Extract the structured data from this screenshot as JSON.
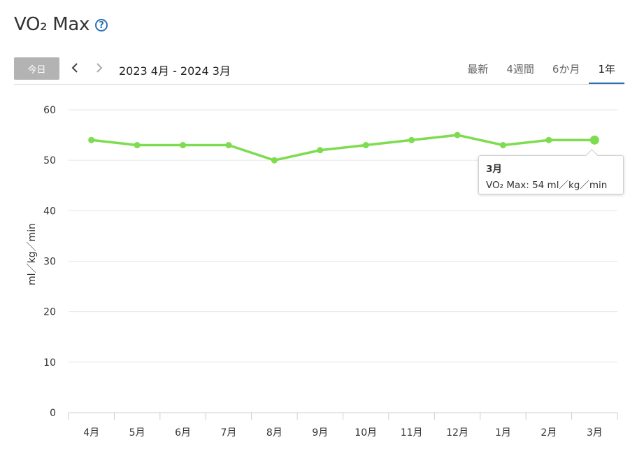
{
  "page": {
    "title": "VO₂ Max",
    "help_icon": "question-circle-icon"
  },
  "toolbar": {
    "today_label": "今日",
    "prev_icon": "chevron-left-icon",
    "next_icon": "chevron-right-icon",
    "date_range": "2023 4月 - 2024 3月",
    "tabs": [
      {
        "label": "最新",
        "active": false
      },
      {
        "label": "4週間",
        "active": false
      },
      {
        "label": "6か月",
        "active": false
      },
      {
        "label": "1年",
        "active": true
      }
    ]
  },
  "tooltip": {
    "title": "3月",
    "line": "VO₂ Max: 54 ml／kg／min"
  },
  "chart_data": {
    "type": "line",
    "categories": [
      "4月",
      "5月",
      "6月",
      "7月",
      "8月",
      "9月",
      "10月",
      "11月",
      "12月",
      "1月",
      "2月",
      "3月"
    ],
    "series": [
      {
        "values": [
          54,
          53,
          53,
          53,
          50,
          52,
          53,
          54,
          55,
          53,
          54,
          54
        ],
        "color": "#7ddc4f"
      }
    ],
    "ylabel": "ml／kg／min",
    "ylim": [
      0,
      60
    ],
    "yticks": [
      0,
      10,
      20,
      30,
      40,
      50,
      60
    ],
    "grid": true,
    "highlighted_index": 11,
    "colors": {
      "line": "#7ddc4f",
      "grid": "#e6e6e6",
      "axis": "#cccccc"
    }
  }
}
